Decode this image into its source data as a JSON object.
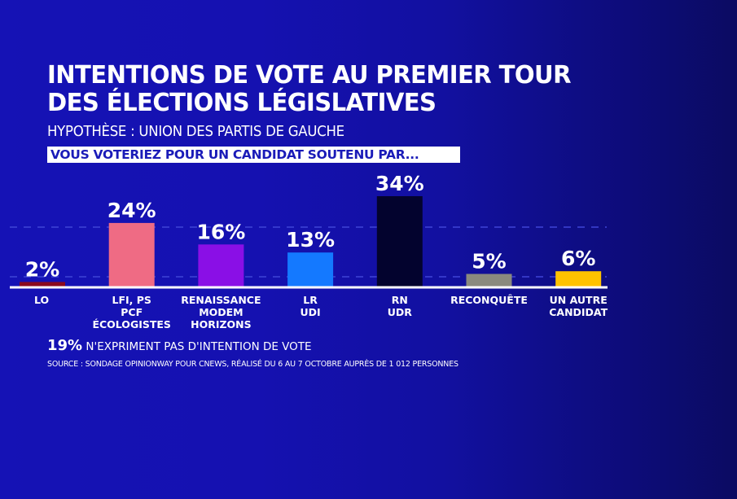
{
  "header": {
    "title_line1": "INTENTIONS DE VOTE AU PREMIER TOUR",
    "title_line2": "DES ÉLECTIONS LÉGISLATIVES",
    "subtitle": "HYPOTHÈSE :  UNION DES PARTIS DE GAUCHE",
    "question": "VOUS VOTERIEZ POUR UN CANDIDAT SOUTENU PAR..."
  },
  "footer": {
    "no_intent_pct": "19%",
    "no_intent_text": " N'EXPRIMENT PAS D'INTENTION DE VOTE",
    "source": "SOURCE : SONDAGE OPINIONWAY POUR CNEWS, RÉALISÉ DU 6 AU 7 OCTOBRE AUPRÈS DE 1 012 PERSONNES"
  },
  "chart_data": {
    "type": "bar",
    "title": "INTENTIONS DE VOTE AU PREMIER TOUR DES ÉLECTIONS LÉGISLATIVES",
    "subtitle": "HYPOTHÈSE :  UNION DES PARTIS DE GAUCHE",
    "xlabel": "",
    "ylabel": "",
    "ylim": [
      0,
      34
    ],
    "grid": true,
    "unit": "%",
    "categories": [
      [
        "LO"
      ],
      [
        "LFI, PS",
        "PCF",
        "ÉCOLOGISTES"
      ],
      [
        "RENAISSANCE",
        "MODEM",
        "HORIZONS"
      ],
      [
        "LR",
        "UDI"
      ],
      [
        "RN",
        "UDR"
      ],
      [
        "RECONQUÊTE"
      ],
      [
        "UN AUTRE",
        "CANDIDAT"
      ]
    ],
    "values": [
      2,
      24,
      16,
      13,
      34,
      5,
      6
    ],
    "value_labels": [
      "2%",
      "24%",
      "16%",
      "13%",
      "34%",
      "5%",
      "6%"
    ],
    "colors": [
      "#8b0a1e",
      "#ef6b84",
      "#8a0fe6",
      "#1479ff",
      "#03032e",
      "#8a8a7e",
      "#ffc200"
    ]
  }
}
